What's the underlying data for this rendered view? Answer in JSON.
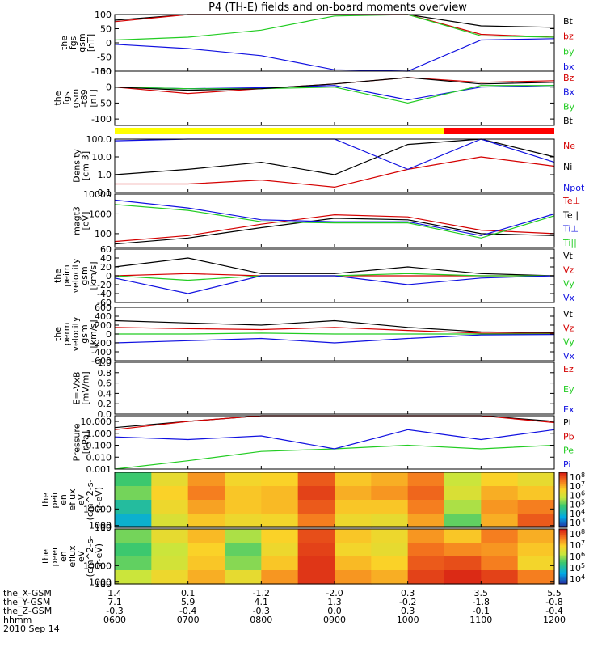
{
  "title": "P4 (TH-E) fields and on-board moments overview",
  "colors": {
    "black": "#000000",
    "red": "#d40000",
    "green": "#22cc22",
    "blue": "#1010e0",
    "yellow": "#ffff00",
    "barred": "#ff0000"
  },
  "ephemeris": {
    "rows": [
      {
        "label": "the_X-GSM",
        "values": [
          "1.4",
          "0.1",
          "-1.2",
          "-2.0",
          "0.3",
          "3.5",
          "5.5"
        ]
      },
      {
        "label": "the_Y-GSM",
        "values": [
          "7.1",
          "5.9",
          "4.1",
          "1.3",
          "-0.2",
          "-1.8",
          "-0.8"
        ]
      },
      {
        "label": "the_Z-GSM",
        "values": [
          "-0.3",
          "-0.4",
          "-0.3",
          "0.0",
          "0.3",
          "-0.1",
          "-0.4"
        ]
      },
      {
        "label": "hhmm",
        "values": [
          "0600",
          "0700",
          "0800",
          "0900",
          "1000",
          "1100",
          "1200"
        ]
      }
    ],
    "date": "2010 Sep 14"
  },
  "chart_data": [
    {
      "type": "line",
      "id": "fgs",
      "ylabel_lines": [
        "the",
        "fgs",
        "gsm",
        "[nT]"
      ],
      "ylim": [
        -100,
        100
      ],
      "ticks": [
        "100",
        "50",
        "0",
        "-50",
        "-100"
      ],
      "legend": [
        {
          "name": "Bt",
          "color": "black"
        },
        {
          "name": "bz",
          "color": "red"
        },
        {
          "name": "by",
          "color": "green"
        },
        {
          "name": "bx",
          "color": "blue"
        }
      ],
      "x": [
        "0600",
        "0700",
        "0800",
        "0900",
        "1000",
        "1100",
        "1200"
      ],
      "series": [
        {
          "name": "Bt",
          "values": [
            80,
            100,
            100,
            100,
            100,
            60,
            55
          ]
        },
        {
          "name": "bz",
          "values": [
            75,
            100,
            100,
            100,
            100,
            30,
            20
          ]
        },
        {
          "name": "by",
          "values": [
            10,
            20,
            45,
            95,
            100,
            25,
            20
          ]
        },
        {
          "name": "bx",
          "values": [
            -5,
            -20,
            -45,
            -95,
            -100,
            10,
            15
          ]
        }
      ]
    },
    {
      "type": "line",
      "id": "fgs_dip",
      "ylabel_lines": [
        "the",
        "fgs",
        "gsm",
        "-t89",
        "[nT]"
      ],
      "ylim": [
        -120,
        50
      ],
      "ticks": [
        "50",
        "0",
        "-50",
        "-100"
      ],
      "legend": [
        {
          "name": "Bz",
          "color": "red"
        },
        {
          "name": "Bx",
          "color": "blue"
        },
        {
          "name": "By",
          "color": "green"
        },
        {
          "name": "Bt",
          "color": "black"
        }
      ],
      "x": [
        "0600",
        "0700",
        "0800",
        "0900",
        "1000",
        "1100",
        "1200"
      ],
      "series": [
        {
          "name": "Bz",
          "values": [
            0,
            -20,
            -5,
            10,
            30,
            15,
            20
          ]
        },
        {
          "name": "Bx",
          "values": [
            0,
            -5,
            -2,
            5,
            -40,
            0,
            5
          ]
        },
        {
          "name": "By",
          "values": [
            0,
            -5,
            -5,
            0,
            -50,
            5,
            5
          ]
        },
        {
          "name": "Bt",
          "values": [
            0,
            -10,
            -5,
            10,
            30,
            10,
            15
          ]
        }
      ]
    },
    {
      "type": "bar",
      "id": "mode",
      "segments": [
        {
          "from": "0600",
          "to": "1030",
          "color": "yellow"
        },
        {
          "from": "1030",
          "to": "1200",
          "color": "barred"
        }
      ]
    },
    {
      "type": "line",
      "id": "density",
      "yscale": "log",
      "ylabel_lines": [
        "Density",
        "[cm-3]"
      ],
      "ylim": [
        0.1,
        100
      ],
      "ticks": [
        "100.0",
        "10.0",
        "1.0",
        "0.1"
      ],
      "legend": [
        {
          "name": "Ne",
          "color": "red"
        },
        {
          "name": "Ni",
          "color": "black"
        },
        {
          "name": "Npot",
          "color": "blue"
        }
      ],
      "x": [
        "0600",
        "0700",
        "0800",
        "0900",
        "1000",
        "1100",
        "1200"
      ],
      "series": [
        {
          "name": "Ne",
          "values": [
            0.3,
            0.3,
            0.5,
            0.2,
            2.0,
            10,
            3
          ]
        },
        {
          "name": "Ni",
          "values": [
            1.0,
            2.0,
            5.0,
            1.0,
            50,
            100,
            10
          ]
        },
        {
          "name": "Npot",
          "values": [
            80,
            100,
            100,
            100,
            2,
            100,
            5
          ]
        }
      ]
    },
    {
      "type": "line",
      "id": "temperature",
      "yscale": "log",
      "ylabel_lines": [
        "magt3",
        "[eV]"
      ],
      "ylim": [
        20,
        10000
      ],
      "ticks": [
        "10000",
        "1000",
        "100"
      ],
      "legend": [
        {
          "name": "Te⊥",
          "color": "red"
        },
        {
          "name": "Te||",
          "color": "black"
        },
        {
          "name": "Ti⊥",
          "color": "blue"
        },
        {
          "name": "Ti||",
          "color": "green"
        }
      ],
      "x": [
        "0600",
        "0700",
        "0800",
        "0900",
        "1000",
        "1100",
        "1200"
      ],
      "series": [
        {
          "name": "Te⊥",
          "values": [
            40,
            80,
            300,
            900,
            700,
            150,
            100
          ]
        },
        {
          "name": "Te||",
          "values": [
            30,
            60,
            200,
            600,
            500,
            100,
            80
          ]
        },
        {
          "name": "Ti⊥",
          "values": [
            5000,
            2000,
            500,
            400,
            400,
            80,
            1000
          ]
        },
        {
          "name": "Ti||",
          "values": [
            3000,
            1500,
            400,
            350,
            350,
            60,
            800
          ]
        }
      ]
    },
    {
      "type": "line",
      "id": "velocity_peim",
      "ylabel_lines": [
        "the",
        "peim",
        "velocity",
        "gsm",
        "[km/s]"
      ],
      "ylim": [
        -60,
        60
      ],
      "ticks": [
        "60",
        "40",
        "20",
        "0",
        "-20",
        "-40",
        "-60"
      ],
      "legend": [
        {
          "name": "Vt",
          "color": "black"
        },
        {
          "name": "Vz",
          "color": "red"
        },
        {
          "name": "Vy",
          "color": "green"
        },
        {
          "name": "Vx",
          "color": "blue"
        }
      ],
      "x": [
        "0600",
        "0700",
        "0800",
        "0900",
        "1000",
        "1100",
        "1200"
      ],
      "series": [
        {
          "name": "Vt",
          "values": [
            20,
            40,
            5,
            5,
            20,
            5,
            0
          ]
        },
        {
          "name": "Vz",
          "values": [
            0,
            5,
            0,
            0,
            0,
            0,
            0
          ]
        },
        {
          "name": "Vy",
          "values": [
            0,
            -10,
            0,
            0,
            5,
            0,
            0
          ]
        },
        {
          "name": "Vx",
          "values": [
            -5,
            -40,
            0,
            0,
            -20,
            -5,
            0
          ]
        }
      ]
    },
    {
      "type": "line",
      "id": "velocity_perm",
      "ylabel_lines": [
        "the",
        "perm",
        "velocity",
        "gsm",
        "[km/s]"
      ],
      "ylim": [
        -600,
        600
      ],
      "ticks": [
        "600",
        "400",
        "200",
        "0",
        "-200",
        "-400",
        "-600"
      ],
      "legend": [
        {
          "name": "Vt",
          "color": "black"
        },
        {
          "name": "Vz",
          "color": "red"
        },
        {
          "name": "Vy",
          "color": "green"
        },
        {
          "name": "Vx",
          "color": "blue"
        }
      ],
      "x": [
        "0600",
        "0700",
        "0800",
        "0900",
        "1000",
        "1100",
        "1200"
      ],
      "series": [
        {
          "name": "Vt",
          "values": [
            300,
            250,
            200,
            300,
            150,
            50,
            30
          ]
        },
        {
          "name": "Vz",
          "values": [
            150,
            120,
            100,
            150,
            80,
            20,
            10
          ]
        },
        {
          "name": "Vy",
          "values": [
            0,
            0,
            20,
            0,
            0,
            0,
            0
          ]
        },
        {
          "name": "Vx",
          "values": [
            -200,
            -150,
            -100,
            -200,
            -100,
            -20,
            -10
          ]
        }
      ]
    },
    {
      "type": "line",
      "id": "efield",
      "ylabel_lines": [
        "E=-VxB",
        "[mV/m]"
      ],
      "ylim": [
        0,
        1
      ],
      "ticks": [
        "1.0",
        "0.8",
        "0.6",
        "0.4",
        "0.2",
        "0.0"
      ],
      "legend": [
        {
          "name": "Ez",
          "color": "red"
        },
        {
          "name": "Ey",
          "color": "green"
        },
        {
          "name": "Ex",
          "color": "blue"
        }
      ],
      "series": []
    },
    {
      "type": "line",
      "id": "pressure",
      "yscale": "log",
      "ylabel_lines": [
        "Pressure",
        "[nPa]"
      ],
      "ylim": [
        0.001,
        30
      ],
      "ticks": [
        "10.000",
        "1.000",
        "0.100",
        "0.010",
        "0.001"
      ],
      "legend": [
        {
          "name": "Pt",
          "color": "black"
        },
        {
          "name": "Pb",
          "color": "red"
        },
        {
          "name": "Pe",
          "color": "green"
        },
        {
          "name": "Pi",
          "color": "blue"
        }
      ],
      "x": [
        "0600",
        "0700",
        "0800",
        "0900",
        "1000",
        "1100",
        "1200"
      ],
      "series": [
        {
          "name": "Pt",
          "values": [
            3,
            10,
            30,
            30,
            30,
            30,
            10
          ]
        },
        {
          "name": "Pb",
          "values": [
            2,
            10,
            30,
            30,
            30,
            30,
            8
          ]
        },
        {
          "name": "Pe",
          "values": [
            0.001,
            0.005,
            0.03,
            0.05,
            0.1,
            0.05,
            0.1
          ]
        },
        {
          "name": "Pi",
          "values": [
            0.5,
            0.3,
            0.6,
            0.05,
            2.0,
            0.3,
            2.0
          ]
        }
      ]
    },
    {
      "type": "heatmap",
      "id": "peir",
      "ylabel_lines": [
        "the",
        "peir",
        "en",
        "eflux",
        "eV",
        "(cm^2-s-",
        "sr-eV)"
      ],
      "ylim": [
        5,
        30000
      ],
      "ticks": [
        "10000",
        "1000",
        "100",
        "10"
      ],
      "colorbar_ticks": [
        "10^8",
        "10^7",
        "10^6",
        "10^5",
        "10^4",
        "10^3"
      ],
      "x": [
        "0600",
        "0700",
        "0800",
        "0900",
        "1000",
        "1100",
        "1200"
      ],
      "levels": [
        [
          5.0,
          6.2,
          7.0,
          6.4,
          6.5,
          7.5,
          6.6,
          6.8,
          7.2,
          5.8,
          6.5,
          6.2
        ],
        [
          5.3,
          6.5,
          7.2,
          6.6,
          6.7,
          7.7,
          6.8,
          7.0,
          7.4,
          6.0,
          6.8,
          6.6
        ],
        [
          4.6,
          6.3,
          6.9,
          6.6,
          6.7,
          7.5,
          6.6,
          6.6,
          7.2,
          5.6,
          7.0,
          7.2
        ],
        [
          4.2,
          6.0,
          6.6,
          6.3,
          6.4,
          7.2,
          6.3,
          6.2,
          6.9,
          5.2,
          6.8,
          7.5
        ]
      ]
    },
    {
      "type": "heatmap",
      "id": "peer",
      "ylabel_lines": [
        "the",
        "peer",
        "en",
        "eflux",
        "eV",
        "(cm^2-s-",
        "sr-eV)"
      ],
      "ylim": [
        5,
        30000
      ],
      "ticks": [
        "10000",
        "1000",
        "100",
        "10"
      ],
      "colorbar_ticks": [
        "10^8",
        "10^7",
        "10^6",
        "10^5",
        "10^4"
      ],
      "x": [
        "0600",
        "0700",
        "0800",
        "0900",
        "1000",
        "1100",
        "1200"
      ],
      "levels": [
        [
          5.3,
          6.2,
          6.7,
          5.6,
          6.5,
          7.6,
          6.6,
          6.3,
          7.0,
          6.6,
          7.2,
          6.8
        ],
        [
          5.0,
          5.8,
          6.5,
          5.2,
          6.3,
          7.7,
          6.4,
          6.2,
          7.3,
          7.1,
          7.0,
          6.6
        ],
        [
          5.2,
          5.9,
          6.6,
          5.4,
          6.6,
          7.8,
          6.7,
          6.5,
          7.5,
          7.6,
          7.2,
          6.4
        ],
        [
          5.8,
          6.3,
          6.8,
          6.2,
          7.0,
          7.8,
          7.0,
          6.8,
          7.7,
          7.9,
          7.7,
          7.2
        ]
      ]
    }
  ]
}
